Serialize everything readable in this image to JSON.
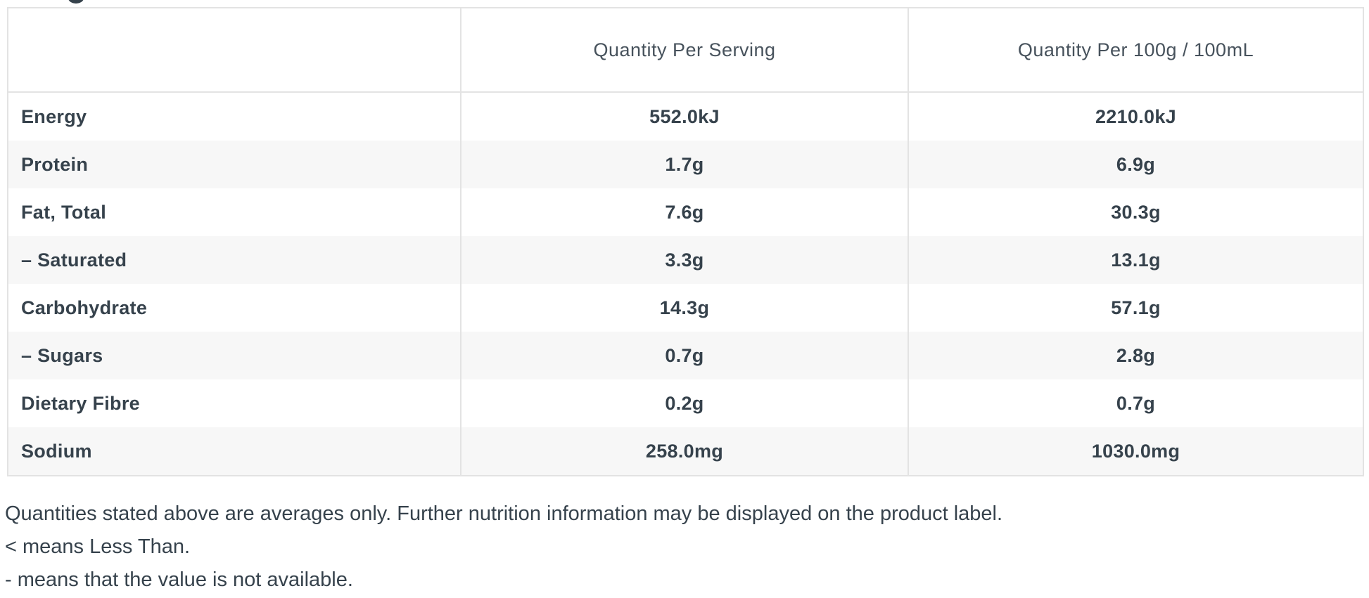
{
  "page": {
    "cropped_text_fragment": ""
  },
  "nutrition_table": {
    "columns": [
      "",
      "Quantity Per Serving",
      "Quantity Per 100g / 100mL"
    ],
    "rows": [
      {
        "label": "Energy",
        "per_serving": "552.0kJ",
        "per_100g": "2210.0kJ"
      },
      {
        "label": "Protein",
        "per_serving": "1.7g",
        "per_100g": "6.9g"
      },
      {
        "label": "Fat, Total",
        "per_serving": "7.6g",
        "per_100g": "30.3g"
      },
      {
        "label": "– Saturated",
        "per_serving": "3.3g",
        "per_100g": "13.1g"
      },
      {
        "label": "Carbohydrate",
        "per_serving": "14.3g",
        "per_100g": "57.1g"
      },
      {
        "label": "– Sugars",
        "per_serving": "0.7g",
        "per_100g": "2.8g"
      },
      {
        "label": "Dietary Fibre",
        "per_serving": "0.2g",
        "per_100g": "0.7g"
      },
      {
        "label": "Sodium",
        "per_serving": "258.0mg",
        "per_100g": "1030.0mg"
      }
    ]
  },
  "footnotes": {
    "line1": "Quantities stated above are averages only. Further nutrition information may be displayed on the product label.",
    "line2": "< means Less Than.",
    "line3": "- means that the value is not available."
  },
  "colors": {
    "text_dark": "#36424c",
    "text_header": "#47525c",
    "border": "#e3e3e3",
    "row_alt_bg": "#f7f7f7"
  }
}
